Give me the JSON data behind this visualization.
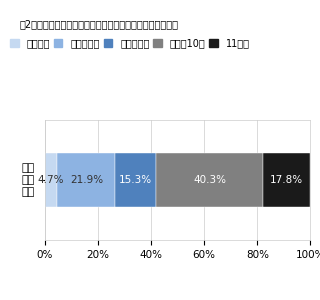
{
  "title_line1": "図2　就職活動準備の開始時期はいつ頃から行いましたか？",
  "ylabel": "準備\n開始\n時期",
  "segments": [
    {
      "label": "４月以前",
      "value": 4.7,
      "color": "#c5d9f1",
      "text_color": "#333333"
    },
    {
      "label": "５月〜６月",
      "value": 21.9,
      "color": "#8db3e2",
      "text_color": "#333333"
    },
    {
      "label": "７月〜８月",
      "value": 15.3,
      "color": "#4f81bd",
      "text_color": "#ffffff"
    },
    {
      "label": "９月〜10月",
      "value": 40.3,
      "color": "#808080",
      "text_color": "#ffffff"
    },
    {
      "label": "11月〜",
      "value": 17.8,
      "color": "#1a1a1a",
      "text_color": "#ffffff"
    }
  ],
  "xlim": [
    0,
    100
  ],
  "xticks": [
    0,
    20,
    40,
    60,
    80,
    100
  ],
  "xticklabels": [
    "0%",
    "20%",
    "40%",
    "60%",
    "80%",
    "100%"
  ],
  "background_color": "#ffffff",
  "grid_color": "#cccccc",
  "bar_height": 0.5,
  "font_size_title": 7.0,
  "font_size_legend": 7.0,
  "font_size_bar": 7.5,
  "font_size_tick": 7.5,
  "font_size_ylabel": 8.0
}
